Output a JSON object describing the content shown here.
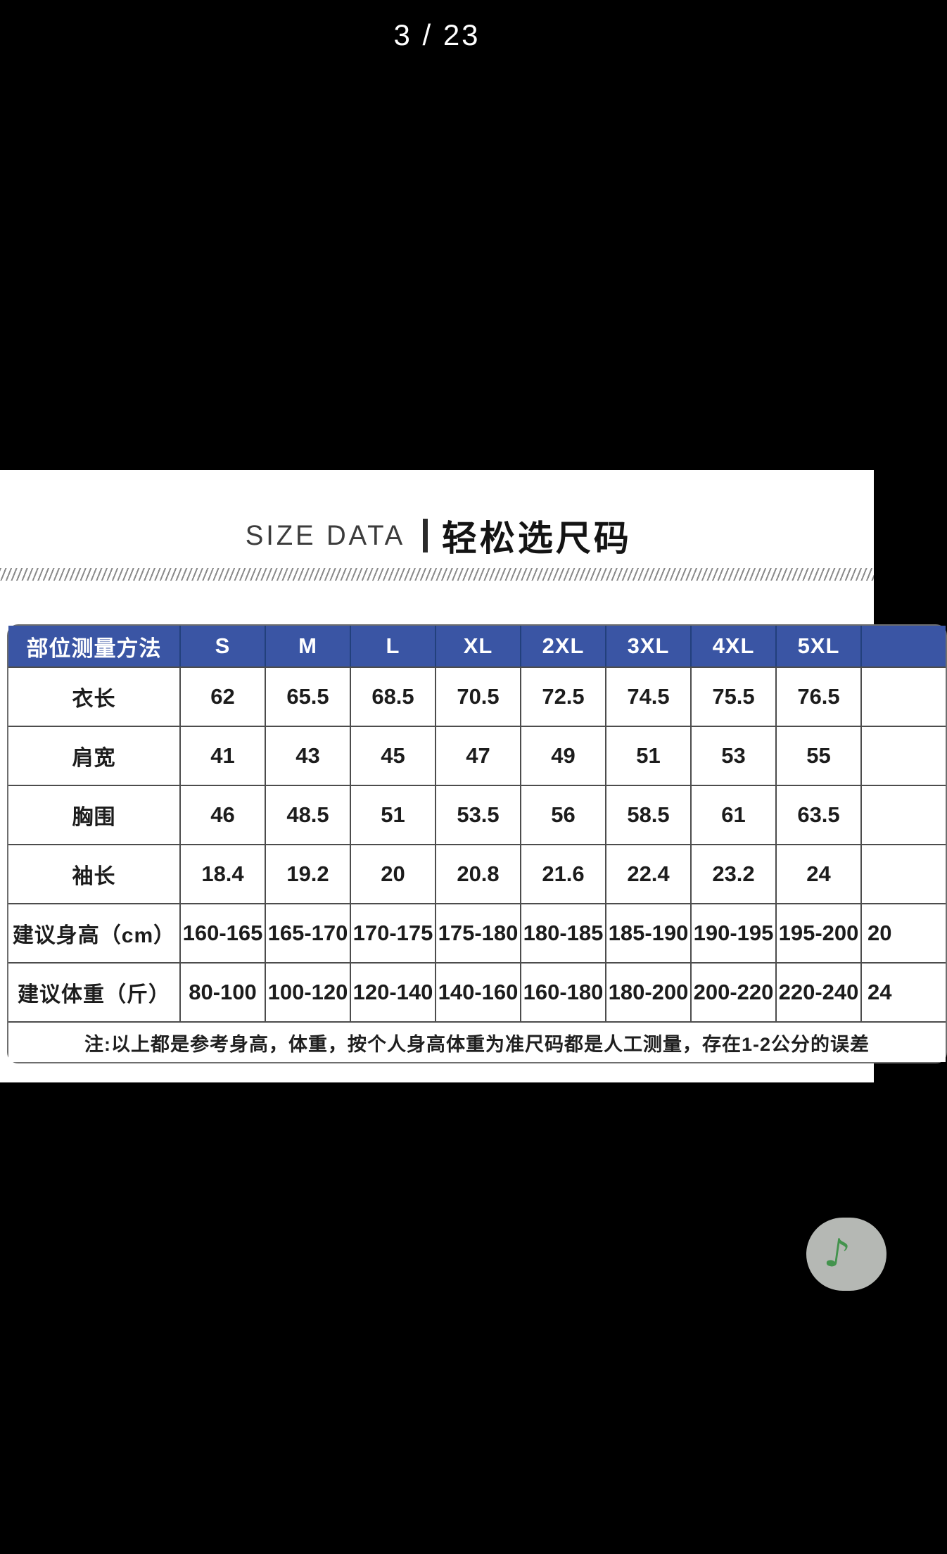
{
  "pager": {
    "text": "3 / 23"
  },
  "size_section": {
    "title_en": "SIZE DATA",
    "title_divider": "|",
    "title_zh": "轻松选尺码",
    "table": {
      "columns": [
        "部位测量方法",
        "S",
        "M",
        "L",
        "XL",
        "2XL",
        "3XL",
        "4XL",
        "5XL",
        ""
      ],
      "rows": [
        {
          "label": "衣长",
          "values": [
            "62",
            "65.5",
            "68.5",
            "70.5",
            "72.5",
            "74.5",
            "75.5",
            "76.5",
            ""
          ]
        },
        {
          "label": "肩宽",
          "values": [
            "41",
            "43",
            "45",
            "47",
            "49",
            "51",
            "53",
            "55",
            ""
          ]
        },
        {
          "label": "胸围",
          "values": [
            "46",
            "48.5",
            "51",
            "53.5",
            "56",
            "58.5",
            "61",
            "63.5",
            ""
          ]
        },
        {
          "label": "袖长",
          "values": [
            "18.4",
            "19.2",
            "20",
            "20.8",
            "21.6",
            "22.4",
            "23.2",
            "24",
            ""
          ]
        },
        {
          "label": "建议身高（cm）",
          "values": [
            "160-165",
            "165-170",
            "170-175",
            "175-180",
            "180-185",
            "185-190",
            "190-195",
            "195-200",
            "20"
          ]
        },
        {
          "label": "建议体重（斤）",
          "values": [
            "80-100",
            "100-120",
            "120-140",
            "140-160",
            "160-180",
            "180-200",
            "200-220",
            "220-240",
            "24"
          ]
        }
      ],
      "note": "注:以上都是参考身高，体重，按个人身高体重为准尺码都是人工测量，存在1-2公分的误差"
    }
  },
  "music_button": {
    "icon": "music-note-icon",
    "glyph": "♪"
  },
  "colors": {
    "header_bg": "#3a55a4",
    "header_divider": "#22407c",
    "grid": "#4c4c4c",
    "table_border": "#6e6e6e",
    "music_green": "#43934d",
    "pill_bg": "#b5b8b4",
    "page_bg": "#000000",
    "section_bg": "#ffffff"
  }
}
